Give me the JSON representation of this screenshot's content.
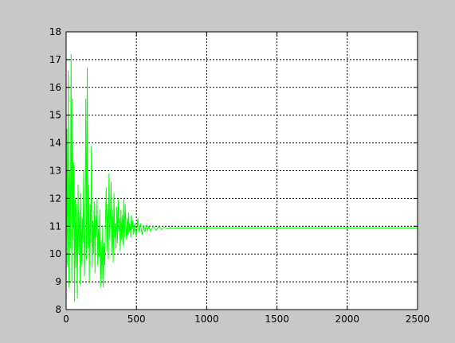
{
  "window": {
    "background": "#c8c8c8"
  },
  "chart_data": {
    "type": "line",
    "title": "",
    "xlabel": "",
    "ylabel": "",
    "xlim": [
      0,
      2500
    ],
    "ylim": [
      8,
      18
    ],
    "x_ticks": [
      0,
      500,
      1000,
      1500,
      2000,
      2500
    ],
    "y_ticks": [
      8,
      9,
      10,
      11,
      12,
      13,
      14,
      15,
      16,
      17,
      18
    ],
    "grid": true,
    "grid_style": "dashed",
    "series": [
      {
        "color": "#00ff00",
        "x": [
          0,
          5,
          10,
          15,
          20,
          25,
          30,
          35,
          40,
          45,
          50,
          55,
          60,
          65,
          70,
          75,
          80,
          85,
          90,
          95,
          100,
          105,
          110,
          115,
          120,
          125,
          130,
          135,
          140,
          145,
          150,
          155,
          160,
          165,
          170,
          175,
          180,
          185,
          190,
          195,
          200,
          205,
          210,
          215,
          220,
          225,
          230,
          235,
          240,
          245,
          250,
          255,
          260,
          265,
          270,
          275,
          280,
          285,
          290,
          295,
          300,
          305,
          310,
          315,
          320,
          325,
          330,
          335,
          340,
          345,
          350,
          355,
          360,
          365,
          370,
          375,
          380,
          385,
          390,
          395,
          400,
          405,
          410,
          415,
          420,
          425,
          430,
          435,
          440,
          445,
          450,
          455,
          460,
          465,
          470,
          475,
          480,
          490,
          500,
          510,
          520,
          530,
          540,
          550,
          560,
          570,
          580,
          590,
          600,
          620,
          640,
          660,
          680,
          700,
          720,
          740,
          760,
          780,
          800,
          850,
          900,
          950,
          1000,
          1500,
          2000,
          2500
        ],
        "y": [
          8.2,
          14.5,
          9.6,
          16.6,
          8.8,
          13.0,
          10.2,
          17.2,
          9.0,
          15.6,
          10.5,
          13.3,
          8.3,
          12.0,
          9.5,
          11.8,
          8.4,
          12.5,
          10.0,
          11.5,
          8.9,
          12.2,
          9.6,
          11.3,
          10.4,
          13.0,
          9.2,
          11.0,
          15.6,
          9.8,
          16.7,
          10.2,
          12.5,
          9.0,
          11.8,
          10.4,
          13.9,
          9.5,
          11.2,
          10.0,
          11.9,
          9.3,
          11.4,
          10.6,
          12.0,
          9.6,
          10.9,
          9.9,
          11.6,
          8.8,
          10.5,
          9.1,
          11.0,
          8.8,
          10.4,
          9.6,
          11.2,
          12.4,
          10.1,
          11.8,
          9.8,
          12.9,
          10.5,
          11.4,
          12.6,
          10.0,
          11.6,
          9.7,
          12.2,
          10.6,
          11.1,
          10.2,
          11.7,
          10.4,
          12.0,
          10.8,
          11.3,
          10.1,
          11.6,
          10.5,
          11.4,
          10.3,
          12.0,
          10.6,
          11.8,
          11.0,
          10.5,
          11.3,
          10.7,
          11.5,
          10.8,
          11.1,
          10.6,
          11.4,
          10.9,
          11.2,
          10.7,
          11.1,
          10.6,
          11.3,
          10.8,
          11.1,
          10.7,
          11.0,
          10.8,
          11.05,
          10.85,
          11.0,
          10.82,
          11.0,
          10.85,
          10.98,
          10.88,
          10.97,
          10.9,
          10.95,
          10.92,
          10.94,
          10.93,
          10.94,
          10.94,
          10.94,
          10.94,
          10.94,
          10.94,
          10.94
        ]
      }
    ]
  }
}
